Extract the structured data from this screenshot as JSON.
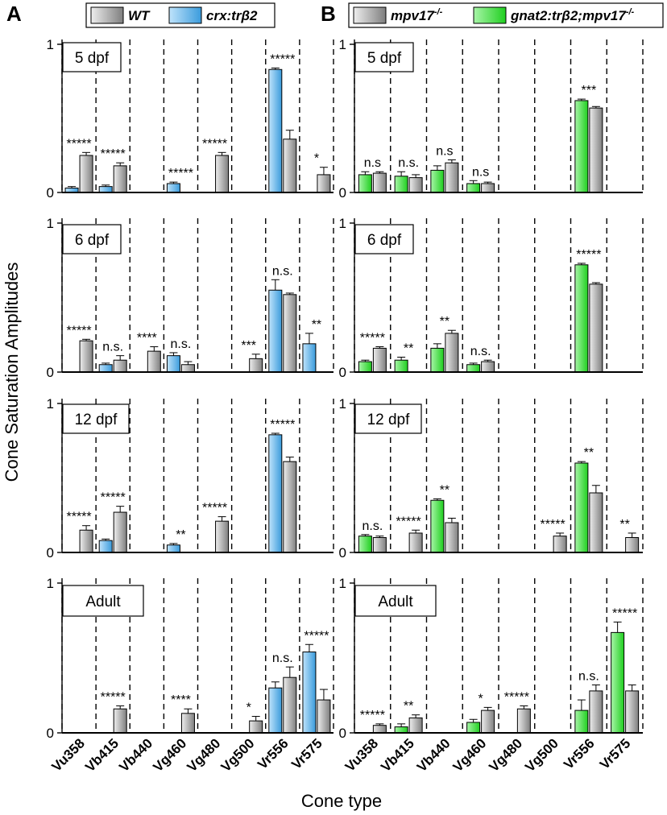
{
  "figure": {
    "y_axis_title": "Cone Saturation Amplitudes",
    "x_axis_title": "Cone type",
    "panel_labels": [
      "A",
      "B"
    ]
  },
  "legends": [
    {
      "entries": [
        {
          "label": "WT",
          "fill": "gray"
        },
        {
          "label": "crx:trβ2",
          "fill": "blue"
        }
      ]
    },
    {
      "entries": [
        {
          "label": "mpv17",
          "sup": "-/-",
          "fill": "gray"
        },
        {
          "label": "gnat2:trβ2;mpv17",
          "sup": "-/-",
          "fill": "green"
        }
      ]
    }
  ],
  "colors": {
    "blue": "#5ab0e6",
    "green": "#3ee03e",
    "gray_light": "#e4e4e4",
    "gray_dark": "#8a8a8a"
  },
  "chart_data": [
    {
      "type": "bar",
      "panel": "A",
      "age": "5 dpf",
      "ylim": [
        0,
        1
      ],
      "yticks": [
        "0",
        "1"
      ],
      "categories": [
        "Vu358",
        "Vb415",
        "Vb440",
        "Vg460",
        "Vg480",
        "Vg500",
        "Vr556",
        "Vr575"
      ],
      "series": [
        {
          "name": "crx:trβ2",
          "values": [
            0.03,
            0.04,
            null,
            0.06,
            null,
            null,
            0.83,
            null
          ],
          "errors": [
            0.01,
            0.01,
            null,
            0.01,
            null,
            null,
            0.01,
            null
          ]
        },
        {
          "name": "WT",
          "values": [
            0.25,
            0.18,
            null,
            null,
            0.25,
            null,
            0.36,
            0.12
          ],
          "errors": [
            0.02,
            0.02,
            null,
            null,
            0.02,
            null,
            0.06,
            0.05
          ]
        }
      ],
      "annotations": [
        "*****",
        "*****",
        null,
        "*****",
        "*****",
        null,
        "*****",
        "*"
      ]
    },
    {
      "type": "bar",
      "panel": "A",
      "age": "6 dpf",
      "ylim": [
        0,
        1
      ],
      "yticks": [
        "0",
        "1"
      ],
      "categories": [
        "Vu358",
        "Vb415",
        "Vb440",
        "Vg460",
        "Vg480",
        "Vg500",
        "Vr556",
        "Vr575"
      ],
      "series": [
        {
          "name": "crx:trβ2",
          "values": [
            null,
            0.05,
            null,
            0.11,
            null,
            null,
            0.55,
            0.19
          ],
          "errors": [
            null,
            0.01,
            null,
            0.02,
            null,
            null,
            0.07,
            0.07
          ]
        },
        {
          "name": "WT",
          "values": [
            0.21,
            0.08,
            0.14,
            0.05,
            null,
            0.09,
            0.52,
            null
          ],
          "errors": [
            0.01,
            0.03,
            0.03,
            0.02,
            null,
            0.03,
            0.01,
            null
          ]
        }
      ],
      "annotations": [
        "*****",
        "n.s.",
        "****",
        "n.s.",
        null,
        "***",
        "n.s.",
        "**"
      ]
    },
    {
      "type": "bar",
      "panel": "A",
      "age": "12 dpf",
      "ylim": [
        0,
        1
      ],
      "yticks": [
        "0",
        "1"
      ],
      "categories": [
        "Vu358",
        "Vb415",
        "Vb440",
        "Vg460",
        "Vg480",
        "Vg500",
        "Vr556",
        "Vr575"
      ],
      "series": [
        {
          "name": "crx:trβ2",
          "values": [
            null,
            0.08,
            null,
            0.05,
            null,
            null,
            0.79,
            null
          ],
          "errors": [
            null,
            0.01,
            null,
            0.01,
            null,
            null,
            0.01,
            null
          ]
        },
        {
          "name": "WT",
          "values": [
            0.15,
            0.27,
            null,
            null,
            0.21,
            null,
            0.61,
            null
          ],
          "errors": [
            0.03,
            0.04,
            null,
            null,
            0.03,
            null,
            0.03,
            null
          ]
        }
      ],
      "annotations": [
        "*****",
        "*****",
        null,
        "**",
        "*****",
        null,
        "*****",
        null
      ]
    },
    {
      "type": "bar",
      "panel": "A",
      "age": "Adult",
      "ylim": [
        0,
        1
      ],
      "yticks": [
        "0",
        "1"
      ],
      "categories": [
        "Vu358",
        "Vb415",
        "Vb440",
        "Vg460",
        "Vg480",
        "Vg500",
        "Vr556",
        "Vr575"
      ],
      "series": [
        {
          "name": "crx:trβ2",
          "values": [
            null,
            null,
            null,
            null,
            null,
            null,
            0.3,
            0.54
          ],
          "errors": [
            null,
            null,
            null,
            null,
            null,
            null,
            0.04,
            0.05
          ]
        },
        {
          "name": "WT",
          "values": [
            null,
            0.16,
            null,
            0.13,
            null,
            0.08,
            0.37,
            0.22
          ],
          "errors": [
            null,
            0.02,
            null,
            0.03,
            null,
            0.03,
            0.07,
            0.07
          ]
        }
      ],
      "annotations": [
        null,
        "*****",
        null,
        "****",
        null,
        "*",
        "n.s.",
        "*****"
      ]
    },
    {
      "type": "bar",
      "panel": "B",
      "age": "5 dpf",
      "ylim": [
        0,
        1
      ],
      "yticks": [
        "0",
        "1"
      ],
      "categories": [
        "Vu358",
        "Vb415",
        "Vb440",
        "Vg460",
        "Vg480",
        "Vg500",
        "Vr556",
        "Vr575"
      ],
      "series": [
        {
          "name": "gnat2:trβ2;mpv17-/-",
          "values": [
            0.12,
            0.11,
            0.15,
            0.06,
            null,
            null,
            0.62,
            null
          ],
          "errors": [
            0.02,
            0.03,
            0.03,
            0.02,
            null,
            null,
            0.01,
            null
          ]
        },
        {
          "name": "mpv17-/-",
          "values": [
            0.13,
            0.1,
            0.2,
            0.06,
            null,
            null,
            0.57,
            null
          ],
          "errors": [
            0.01,
            0.02,
            0.02,
            0.01,
            null,
            null,
            0.01,
            null
          ]
        }
      ],
      "annotations": [
        "n.s",
        "n.s.",
        "n.s",
        "n.s",
        null,
        null,
        "***",
        null
      ]
    },
    {
      "type": "bar",
      "panel": "B",
      "age": "6 dpf",
      "ylim": [
        0,
        1
      ],
      "yticks": [
        "0",
        "1"
      ],
      "categories": [
        "Vu358",
        "Vb415",
        "Vb440",
        "Vg460",
        "Vg480",
        "Vg500",
        "Vr556",
        "Vr575"
      ],
      "series": [
        {
          "name": "gnat2:trβ2;mpv17-/-",
          "values": [
            0.07,
            0.08,
            0.16,
            0.05,
            null,
            null,
            0.72,
            null
          ],
          "errors": [
            0.01,
            0.02,
            0.03,
            0.01,
            null,
            null,
            0.01,
            null
          ]
        },
        {
          "name": "mpv17-/-",
          "values": [
            0.16,
            null,
            0.26,
            0.07,
            null,
            null,
            0.59,
            null
          ],
          "errors": [
            0.01,
            null,
            0.02,
            0.01,
            null,
            null,
            0.01,
            null
          ]
        }
      ],
      "annotations": [
        "*****",
        "**",
        "**",
        "n.s.",
        null,
        null,
        "*****",
        null
      ]
    },
    {
      "type": "bar",
      "panel": "B",
      "age": "12 dpf",
      "ylim": [
        0,
        1
      ],
      "yticks": [
        "0",
        "1"
      ],
      "categories": [
        "Vu358",
        "Vb415",
        "Vb440",
        "Vg460",
        "Vg480",
        "Vg500",
        "Vr556",
        "Vr575"
      ],
      "series": [
        {
          "name": "gnat2:trβ2;mpv17-/-",
          "values": [
            0.11,
            null,
            0.35,
            null,
            null,
            null,
            0.6,
            null
          ],
          "errors": [
            0.01,
            null,
            0.01,
            null,
            null,
            null,
            0.01,
            null
          ]
        },
        {
          "name": "mpv17-/-",
          "values": [
            0.1,
            0.13,
            0.2,
            null,
            null,
            0.11,
            0.4,
            0.1
          ],
          "errors": [
            0.01,
            0.02,
            0.03,
            null,
            null,
            0.02,
            0.05,
            0.03
          ]
        }
      ],
      "annotations": [
        "n.s.",
        "*****",
        "**",
        null,
        null,
        "*****",
        "**",
        "**"
      ]
    },
    {
      "type": "bar",
      "panel": "B",
      "age": "Adult",
      "ylim": [
        0,
        1
      ],
      "yticks": [
        "0",
        "1"
      ],
      "categories": [
        "Vu358",
        "Vb415",
        "Vb440",
        "Vg460",
        "Vg480",
        "Vg500",
        "Vr556",
        "Vr575"
      ],
      "series": [
        {
          "name": "gnat2:trβ2;mpv17-/-",
          "values": [
            null,
            0.04,
            null,
            0.07,
            null,
            null,
            0.15,
            0.67
          ],
          "errors": [
            null,
            0.02,
            null,
            0.02,
            null,
            null,
            0.07,
            0.07
          ]
        },
        {
          "name": "mpv17-/-",
          "values": [
            0.05,
            0.1,
            null,
            0.15,
            0.16,
            null,
            0.28,
            0.28
          ],
          "errors": [
            0.01,
            0.02,
            null,
            0.02,
            0.02,
            null,
            0.04,
            0.04
          ]
        }
      ],
      "annotations": [
        "*****",
        "**",
        null,
        "*",
        "*****",
        null,
        "n.s.",
        "*****"
      ]
    }
  ]
}
